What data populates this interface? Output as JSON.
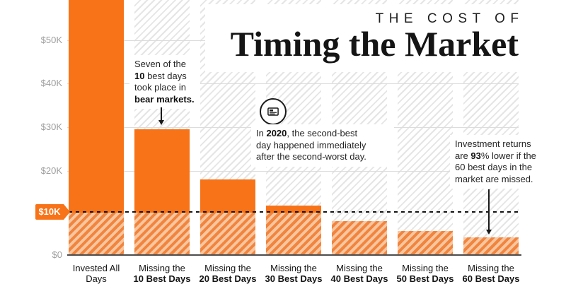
{
  "accent_color": "#f87318",
  "hatch_orange_light": "#fbc69e",
  "hatch_orange_dark": "#f0853f",
  "title": {
    "kicker": "THE COST OF",
    "main": "Timing the Market"
  },
  "y_axis": {
    "ticks": [
      {
        "label": "$50K",
        "y": 57
      },
      {
        "label": "$40K",
        "y": 118
      },
      {
        "label": "$30K",
        "y": 180
      },
      {
        "label": "$20K",
        "y": 242
      },
      {
        "label": "$0",
        "y": 361
      }
    ],
    "badge_label": "$10K"
  },
  "x_labels": [
    {
      "line1": "Invested All Days",
      "line2": ""
    },
    {
      "line1": "Missing the",
      "line2": "10 Best Days"
    },
    {
      "line1": "Missing the",
      "line2": "20 Best Days"
    },
    {
      "line1": "Missing the",
      "line2": "30 Best Days"
    },
    {
      "line1": "Missing the",
      "line2": "40 Best Days"
    },
    {
      "line1": "Missing the",
      "line2": "50 Best Days"
    },
    {
      "line1": "Missing the",
      "line2": "60 Best Days"
    }
  ],
  "annotations": {
    "bear_markets": {
      "l1": "Seven of the",
      "l2_bold": "10",
      "l2": " best days",
      "l3": "took place in",
      "l4_bold": "bear markets."
    },
    "year_2020": {
      "l1_pre": "In ",
      "l1_bold": "2020",
      "l1_post": ", the second-best",
      "l2": "day happened immediately",
      "l3": "after the second-worst day."
    },
    "returns_93": {
      "l1": "Investment returns",
      "l2_pre": "are ",
      "l2_bold": "93",
      "l2_post": "% lower if the",
      "l3": "60 best days in the",
      "l4": "market are missed."
    }
  },
  "chart_data": {
    "type": "bar",
    "title": "The Cost of Timing the Market",
    "categories": [
      "Invested All Days",
      "Missing the 10 Best Days",
      "Missing the 20 Best Days",
      "Missing the 30 Best Days",
      "Missing the 40 Best Days",
      "Missing the 50 Best Days",
      "Missing the 60 Best Days"
    ],
    "values": [
      65000,
      29700,
      17800,
      11700,
      8000,
      5700,
      4200
    ],
    "values_note": "USD, estimated from gridlines; first bar is clipped at the top of the image (> $57K)",
    "xlabel": "",
    "ylabel": "",
    "ytick_labels": [
      "$0",
      "$10K",
      "$20K",
      "$30K",
      "$40K",
      "$50K"
    ],
    "ylim": [
      0,
      57000
    ],
    "grid": true,
    "legend": false,
    "reference_line": {
      "value": 10000,
      "label": "$10K",
      "style": "dashed"
    },
    "bar_color": "#f87318",
    "below_reference_style": "orange diagonal hatch fill below the $10K line",
    "background_style": "light gray diagonal hatched columns behind each bar"
  }
}
